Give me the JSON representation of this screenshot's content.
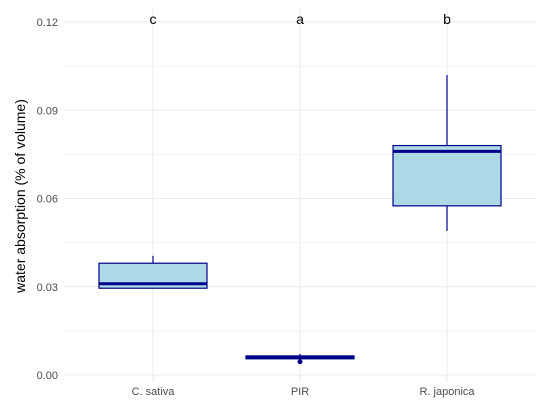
{
  "chart_data": {
    "type": "box",
    "ylabel": "water absorption (% of volume)",
    "xlabel": "",
    "ylim": [
      0,
      0.12
    ],
    "y_ticks": [
      "0.00",
      "0.03",
      "0.06",
      "0.09",
      "0.12"
    ],
    "grid": true,
    "categories": [
      "C. sativa",
      "PIR",
      "R. japonica"
    ],
    "boxes": [
      {
        "category": "C. sativa",
        "whisker_low": 0.0295,
        "q1": 0.0295,
        "median": 0.031,
        "q3": 0.038,
        "whisker_high": 0.0405,
        "outliers": [],
        "letter": "c"
      },
      {
        "category": "PIR",
        "whisker_low": 0.0055,
        "q1": 0.0055,
        "median": 0.006,
        "q3": 0.0065,
        "whisker_high": 0.0072,
        "outliers": [
          0.0045
        ],
        "letter": "a"
      },
      {
        "category": "R. japonica",
        "whisker_low": 0.049,
        "q1": 0.0575,
        "median": 0.076,
        "q3": 0.078,
        "whisker_high": 0.102,
        "outliers": [],
        "letter": "b"
      }
    ],
    "colors": {
      "box_fill": "#add8e6",
      "box_stroke": "#00008b",
      "grid": "#ebebeb"
    }
  }
}
